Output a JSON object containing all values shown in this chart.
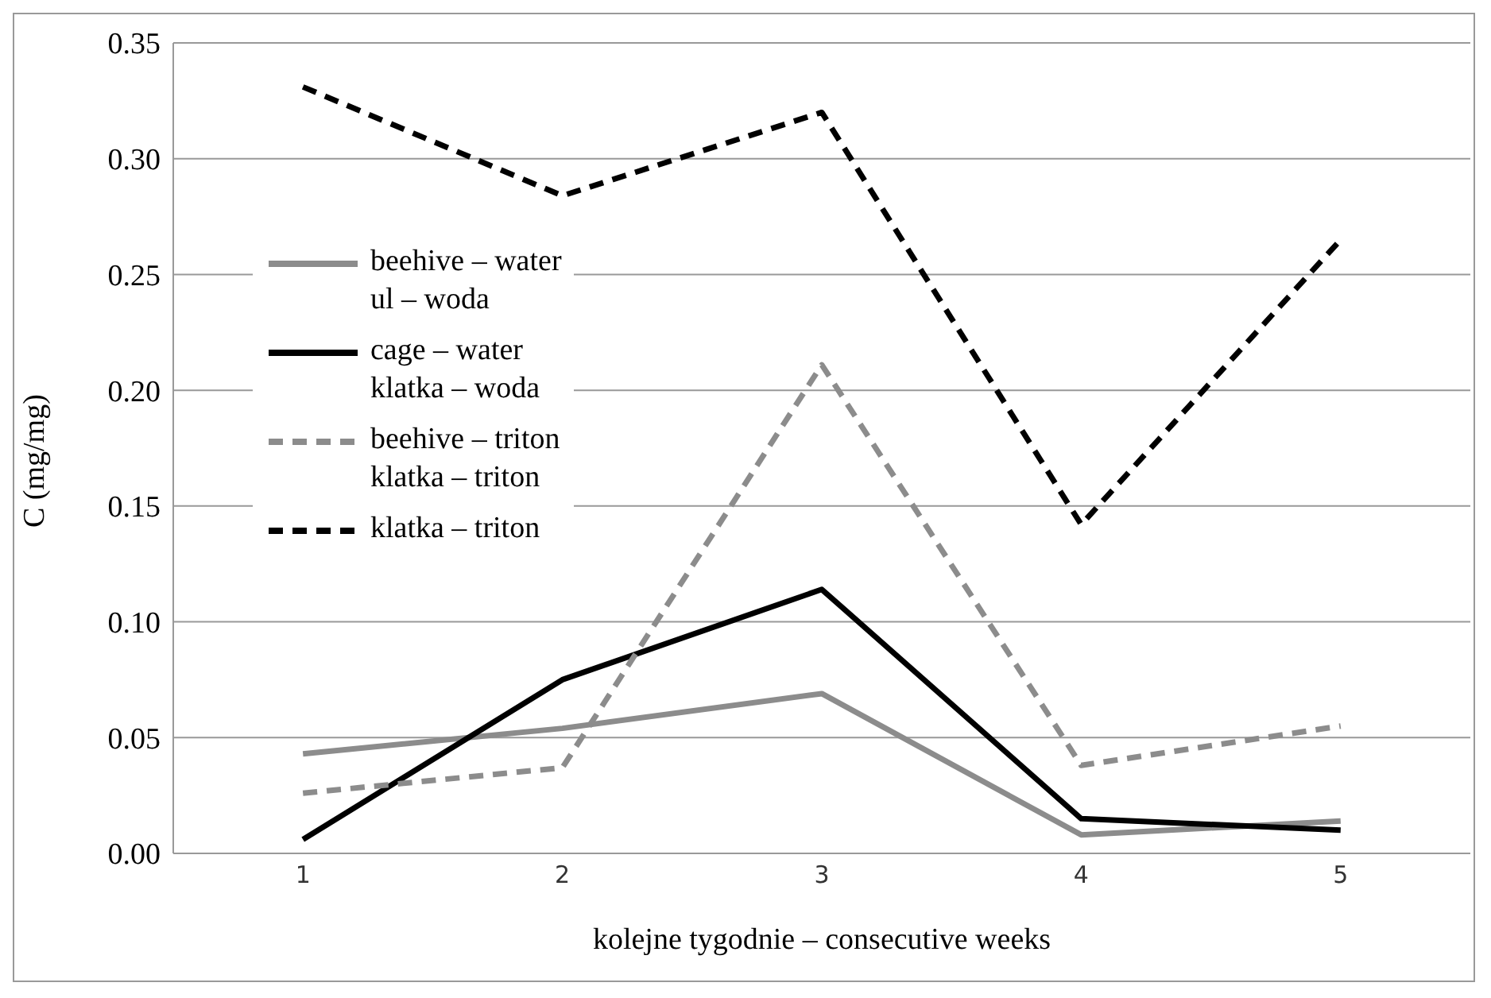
{
  "chart_data": {
    "type": "line",
    "xlabel": "kolejne tygodnie – consecutive weeks",
    "ylabel": "C (mg/mg)",
    "categories": [
      "1",
      "2",
      "3",
      "4",
      "5"
    ],
    "series": [
      {
        "name": "beehive – water\nul – woda",
        "color": "#8c8c8c",
        "line_style": "solid",
        "values": [
          0.043,
          0.054,
          0.069,
          0.008,
          0.014
        ]
      },
      {
        "name": "cage – water\nklatka – woda",
        "color": "#000000",
        "line_style": "solid",
        "values": [
          0.006,
          0.075,
          0.114,
          0.015,
          0.01
        ]
      },
      {
        "name": "beehive – triton\nklatka – triton",
        "color": "#8c8c8c",
        "line_style": "dashed",
        "values": [
          0.026,
          0.037,
          0.211,
          0.038,
          0.055
        ]
      },
      {
        "name": "klatka – triton",
        "color": "#000000",
        "line_style": "dashed",
        "values": [
          0.331,
          0.284,
          0.32,
          0.142,
          0.265
        ]
      }
    ],
    "ylim": [
      0,
      0.35
    ],
    "yticks": [
      {
        "value": 0,
        "label": "0.00"
      },
      {
        "value": 0.05,
        "label": "0.05"
      },
      {
        "value": 0.1,
        "label": "0.10"
      },
      {
        "value": 0.15,
        "label": "0.15"
      },
      {
        "value": 0.2,
        "label": "0.20"
      },
      {
        "value": 0.25,
        "label": "0.25"
      },
      {
        "value": 0.3,
        "label": "0.30"
      },
      {
        "value": 0.35,
        "label": "0.35"
      }
    ],
    "grid": "y",
    "legend": "left",
    "marker": "none"
  }
}
